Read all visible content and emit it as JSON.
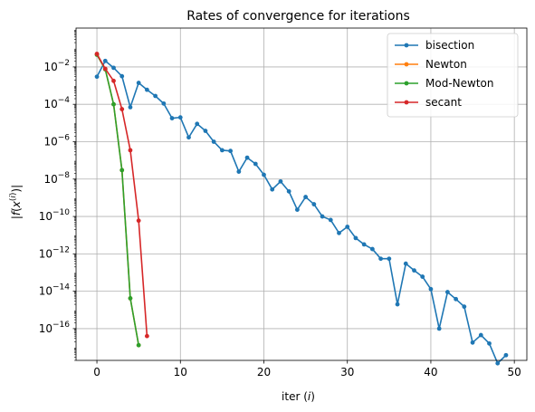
{
  "chart_data": {
    "type": "line",
    "title": "Rates of convergence for iterations",
    "xlabel": "iter (i)",
    "ylabel": "|f(x(i))|",
    "xscale": "linear",
    "yscale": "log",
    "xlim": [
      -2.5,
      51.5
    ],
    "ylim": [
      2e-18,
      1.2
    ],
    "xticks": [
      0,
      10,
      20,
      30,
      40,
      50
    ],
    "yticks": [
      1e-16,
      1e-14,
      1e-12,
      1e-10,
      1e-08,
      1e-06,
      0.0001,
      0.01
    ],
    "ytick_labels": [
      {
        "base": "10",
        "exp": "−16"
      },
      {
        "base": "10",
        "exp": "−14"
      },
      {
        "base": "10",
        "exp": "−12"
      },
      {
        "base": "10",
        "exp": "−10"
      },
      {
        "base": "10",
        "exp": "−8"
      },
      {
        "base": "10",
        "exp": "−6"
      },
      {
        "base": "10",
        "exp": "−4"
      },
      {
        "base": "10",
        "exp": "−2"
      }
    ],
    "grid": true,
    "legend_position": "top-right",
    "series": [
      {
        "name": "bisection",
        "color": "#1f77b4",
        "x": [
          0,
          1,
          2,
          3,
          4,
          5,
          6,
          7,
          8,
          9,
          10,
          11,
          12,
          13,
          14,
          15,
          16,
          17,
          18,
          19,
          20,
          21,
          22,
          23,
          24,
          25,
          26,
          27,
          28,
          29,
          30,
          31,
          32,
          33,
          34,
          35,
          36,
          37,
          38,
          39,
          40,
          41,
          42,
          43,
          44,
          45,
          46,
          47,
          48,
          49
        ],
        "y": [
          0.003,
          0.021,
          0.009,
          0.0032,
          7e-05,
          0.0014,
          0.0006,
          0.00028,
          0.00011,
          1.8e-05,
          2e-05,
          1.7e-06,
          9e-06,
          3.8e-06,
          1e-06,
          3.5e-07,
          3.2e-07,
          2.5e-08,
          1.4e-07,
          6.5e-08,
          1.7e-08,
          2.8e-09,
          7.5e-09,
          2.2e-09,
          2.3e-10,
          1.1e-09,
          4.5e-10,
          1e-10,
          6.5e-11,
          1.3e-11,
          2.8e-11,
          7e-12,
          3.2e-12,
          1.8e-12,
          5.5e-13,
          5.5e-13,
          2e-15,
          3e-13,
          1.3e-13,
          6e-14,
          1.3e-14,
          1e-16,
          9e-15,
          3.8e-15,
          1.5e-15,
          1.8e-17,
          4.5e-17,
          1.6e-17,
          1.4e-18,
          3.8e-18
        ]
      },
      {
        "name": "Newton",
        "color": "#ff7f0e",
        "x": [
          0,
          1,
          2,
          3,
          4,
          5
        ],
        "y": [
          0.045,
          0.0075,
          0.0001,
          3e-08,
          4.2e-15,
          1.3e-17
        ]
      },
      {
        "name": "Mod-Newton",
        "color": "#2ca02c",
        "x": [
          0,
          1,
          2,
          3,
          4,
          5
        ],
        "y": [
          0.045,
          0.0075,
          0.0001,
          3e-08,
          4.2e-15,
          1.3e-17
        ]
      },
      {
        "name": "secant",
        "color": "#d62728",
        "x": [
          0,
          1,
          2,
          3,
          4,
          5,
          6
        ],
        "y": [
          0.05,
          0.008,
          0.0018,
          5.5e-05,
          3.5e-07,
          6e-11,
          4e-17
        ]
      }
    ]
  }
}
